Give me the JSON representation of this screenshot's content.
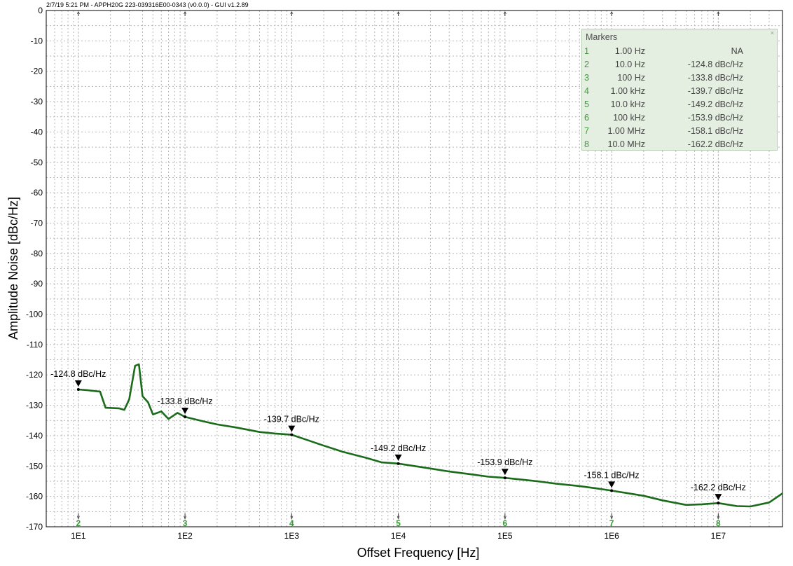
{
  "header_text": "2/7/19 5:21 PM - APPH20G 223-039316E00-0343 (v0.0.0) - GUI v1.2.89",
  "chart_data": {
    "type": "line",
    "title": "",
    "xlabel": "Offset Frequency [Hz]",
    "ylabel": "Amplitude Noise [dBc/Hz]",
    "x_scale": "log",
    "xlim": [
      5,
      40000000
    ],
    "ylim": [
      -170,
      0
    ],
    "y_ticks": [
      0,
      -10,
      -20,
      -30,
      -40,
      -50,
      -60,
      -70,
      -80,
      -90,
      -100,
      -110,
      -120,
      -130,
      -140,
      -150,
      -160,
      -170
    ],
    "x_ticks": [
      {
        "value": 10,
        "label": "1E1"
      },
      {
        "value": 100,
        "label": "1E2"
      },
      {
        "value": 1000,
        "label": "1E3"
      },
      {
        "value": 10000,
        "label": "1E4"
      },
      {
        "value": 100000,
        "label": "1E5"
      },
      {
        "value": 1000000,
        "label": "1E6"
      },
      {
        "value": 10000000,
        "label": "1E7"
      }
    ],
    "grid": true,
    "series": [
      {
        "color": "#1a6b1a",
        "x": [
          10,
          12,
          16,
          18,
          24,
          27,
          30,
          34,
          37,
          40,
          45,
          50,
          60,
          70,
          85,
          100,
          150,
          200,
          300,
          500,
          700,
          1000,
          1500,
          2000,
          3000,
          5000,
          7000,
          10000,
          20000,
          30000,
          50000,
          70000,
          100000,
          200000,
          300000,
          500000,
          700000,
          1000000,
          2000000,
          3000000,
          5000000,
          7000000,
          10000000,
          15000000,
          20000000,
          30000000,
          40000000
        ],
        "y": [
          -124.8,
          -125,
          -125.5,
          -130.8,
          -131,
          -131.5,
          -128,
          -117,
          -116.5,
          -127,
          -129,
          -133,
          -132,
          -134.5,
          -132.5,
          -133.8,
          -135.3,
          -136.3,
          -137.3,
          -138.8,
          -139.3,
          -139.7,
          -141.8,
          -143.3,
          -145.3,
          -147.3,
          -148.8,
          -149.2,
          -150.8,
          -151.8,
          -152.8,
          -153.5,
          -153.9,
          -155,
          -155.8,
          -156.6,
          -157.3,
          -158.1,
          -159.8,
          -161.3,
          -162.8,
          -162.6,
          -162.2,
          -163.2,
          -163.3,
          -162,
          -159
        ]
      }
    ],
    "markers": [
      {
        "index": "1",
        "freq_label": "1.00 Hz",
        "value_label": "NA"
      },
      {
        "index": "2",
        "freq_label": "10.0 Hz",
        "value_label": "-124.8 dBc/Hz",
        "x": 10,
        "y": -124.8
      },
      {
        "index": "3",
        "freq_label": "100 Hz",
        "value_label": "-133.8 dBc/Hz",
        "x": 100,
        "y": -133.8
      },
      {
        "index": "4",
        "freq_label": "1.00 kHz",
        "value_label": "-139.7 dBc/Hz",
        "x": 1000,
        "y": -139.7
      },
      {
        "index": "5",
        "freq_label": "10.0 kHz",
        "value_label": "-149.2 dBc/Hz",
        "x": 10000,
        "y": -149.2
      },
      {
        "index": "6",
        "freq_label": "100 kHz",
        "value_label": "-153.9 dBc/Hz",
        "x": 100000,
        "y": -153.9
      },
      {
        "index": "7",
        "freq_label": "1.00 MHz",
        "value_label": "-158.1 dBc/Hz",
        "x": 1000000,
        "y": -158.1
      },
      {
        "index": "8",
        "freq_label": "10.0 MHz",
        "value_label": "-162.2 dBc/Hz",
        "x": 10000000,
        "y": -162.2
      }
    ]
  },
  "markers_panel": {
    "title": "Markers",
    "close_glyph": "×"
  },
  "colors": {
    "trace": "#1a6b1a",
    "marker_index": "#3a9a3a",
    "panel_background": "#e4eee1",
    "grid": "#b5b5b5"
  }
}
